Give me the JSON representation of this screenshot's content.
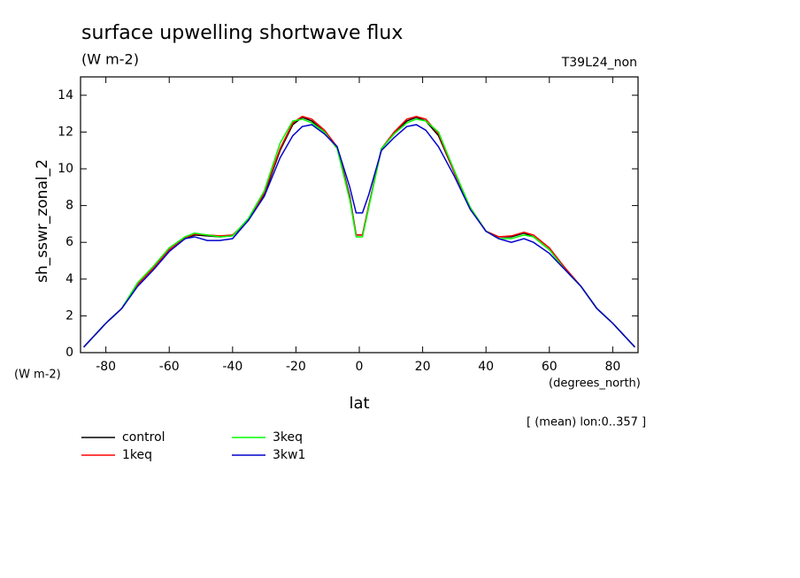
{
  "chart_data": {
    "type": "line",
    "title": "surface upwelling shortwave flux",
    "subtitle": "(W m-2)",
    "annotation": "T39L24_non",
    "y_label": "sh_sswr_zonal_2",
    "y_units": "(W m-2)",
    "x_units": "(degrees_north)",
    "x_label": "lat",
    "note": "[ (mean) lon:0..357 ]",
    "x": [
      -87,
      -80,
      -75,
      -70,
      -65,
      -60,
      -55,
      -52,
      -48,
      -44,
      -40,
      -35,
      -30,
      -25,
      -21,
      -18,
      -15,
      -11,
      -7,
      -3,
      -1,
      1,
      3,
      7,
      11,
      15,
      18,
      21,
      25,
      30,
      35,
      40,
      44,
      48,
      52,
      55,
      60,
      65,
      70,
      75,
      80,
      87
    ],
    "series": [
      {
        "name": "control",
        "color": "#000000",
        "values": [
          0.3,
          1.6,
          2.4,
          3.7,
          4.6,
          5.6,
          6.2,
          6.4,
          6.35,
          6.3,
          6.35,
          7.2,
          8.6,
          11.0,
          12.4,
          12.8,
          12.6,
          12.0,
          11.2,
          8.5,
          6.4,
          6.4,
          8.0,
          11.1,
          11.9,
          12.6,
          12.8,
          12.6,
          11.8,
          9.8,
          7.9,
          6.6,
          6.3,
          6.3,
          6.5,
          6.3,
          5.6,
          4.6,
          3.6,
          2.4,
          1.6,
          0.3
        ]
      },
      {
        "name": "1keq",
        "color": "#ff0000",
        "values": [
          0.3,
          1.6,
          2.4,
          3.7,
          4.6,
          5.6,
          6.25,
          6.45,
          6.4,
          6.35,
          6.4,
          7.2,
          8.7,
          11.1,
          12.5,
          12.85,
          12.7,
          12.1,
          11.2,
          8.4,
          6.4,
          6.4,
          8.0,
          11.1,
          12.0,
          12.7,
          12.85,
          12.7,
          11.9,
          9.8,
          7.9,
          6.6,
          6.3,
          6.35,
          6.55,
          6.4,
          5.7,
          4.6,
          3.6,
          2.4,
          1.6,
          0.3
        ]
      },
      {
        "name": "3keq",
        "color": "#00ff00",
        "values": [
          0.3,
          1.6,
          2.4,
          3.8,
          4.7,
          5.7,
          6.3,
          6.5,
          6.4,
          6.3,
          6.35,
          7.3,
          8.8,
          11.4,
          12.6,
          12.7,
          12.5,
          12.0,
          11.1,
          8.3,
          6.3,
          6.3,
          7.9,
          11.1,
          11.9,
          12.5,
          12.7,
          12.6,
          12.0,
          9.9,
          7.9,
          6.6,
          6.2,
          6.2,
          6.4,
          6.3,
          5.6,
          4.5,
          3.6,
          2.4,
          1.6,
          0.3
        ]
      },
      {
        "name": "3kw1",
        "color": "#0000cc",
        "values": [
          0.3,
          1.6,
          2.4,
          3.6,
          4.5,
          5.5,
          6.2,
          6.3,
          6.1,
          6.1,
          6.2,
          7.2,
          8.5,
          10.6,
          11.8,
          12.3,
          12.4,
          11.9,
          11.2,
          9.0,
          7.6,
          7.6,
          8.6,
          11.0,
          11.7,
          12.3,
          12.4,
          12.1,
          11.2,
          9.6,
          7.8,
          6.6,
          6.2,
          6.0,
          6.2,
          6.0,
          5.4,
          4.5,
          3.6,
          2.4,
          1.6,
          0.3
        ]
      }
    ],
    "xlim": [
      -88,
      88
    ],
    "ylim": [
      0,
      15
    ],
    "xticks": [
      -80,
      -60,
      -40,
      -20,
      0,
      20,
      40,
      60,
      80
    ],
    "yticks": [
      0,
      2,
      4,
      6,
      8,
      10,
      12,
      14
    ],
    "grid": false
  }
}
